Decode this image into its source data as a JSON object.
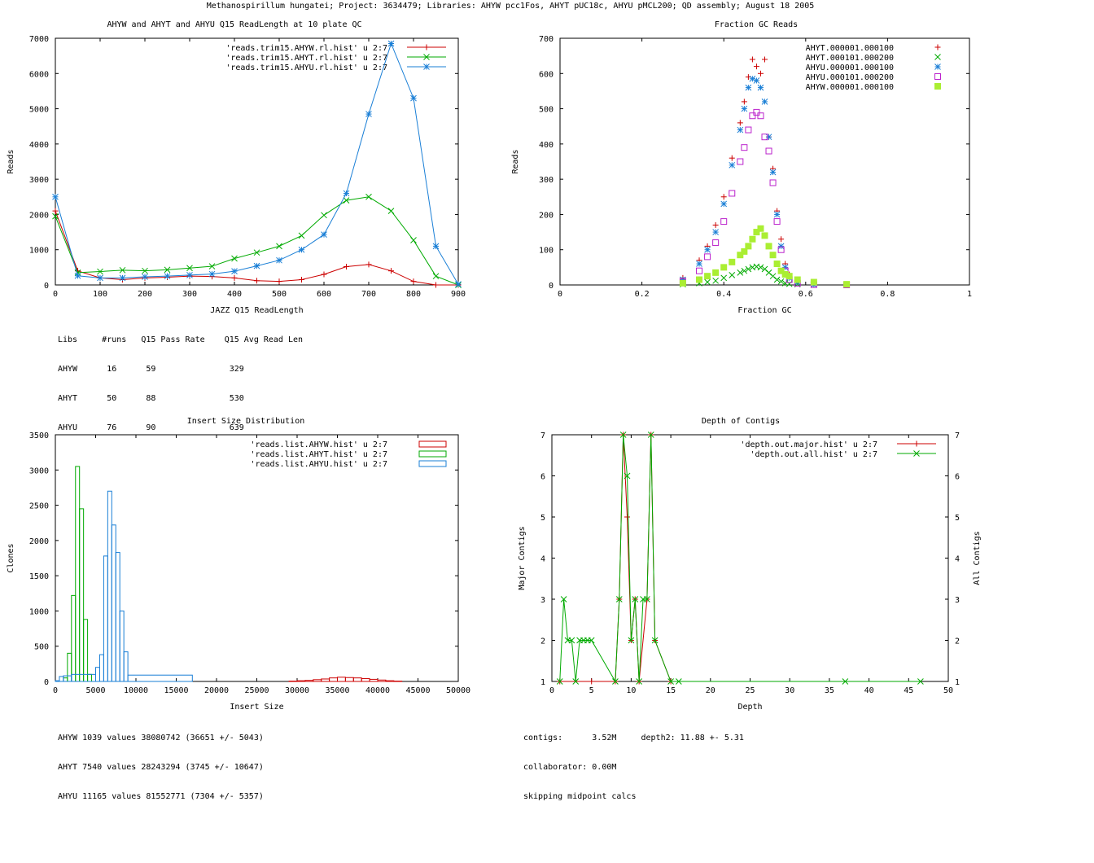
{
  "page_title": "Methanospirillum hungatei; Project: 3634479; Libraries: AHYW pcc1Fos, AHYT pUC18c, AHYU pMCL200; QD assembly; August 18 2005",
  "stats": {
    "readlength": [
      "Libs     #runs   Q15 Pass Rate    Q15 Avg Read Len",
      "AHYW      16      59               329",
      "AHYT      50      88               530",
      "AHYU      76      90               639"
    ],
    "insert": [
      "AHYW 1039 values 38080742 (36651 +/- 5043)",
      "AHYT 7540 values 28243294 (3745 +/- 10647)",
      "AHYU 11165 values 81552771 (7304 +/- 5357)"
    ],
    "depth": [
      "contigs:      3.52M     depth2: 11.88 +- 5.31",
      "collaborator: 0.00M",
      "skipping midpoint calcs"
    ]
  },
  "chart_data": [
    {
      "type": "line",
      "title": "AHYW and AHYT and AHYU Q15 ReadLength at 10 plate QC",
      "xlabel": "JAZZ Q15 ReadLength",
      "ylabel": "Reads",
      "xlim": [
        0,
        900
      ],
      "ylim": [
        0,
        7000
      ],
      "xticks": [
        0,
        100,
        200,
        300,
        400,
        500,
        600,
        700,
        800,
        900
      ],
      "yticks": [
        0,
        1000,
        2000,
        3000,
        4000,
        5000,
        6000,
        7000
      ],
      "legend": "top-right",
      "x": [
        0,
        50,
        100,
        150,
        200,
        250,
        300,
        350,
        400,
        450,
        500,
        550,
        600,
        650,
        700,
        750,
        800,
        850,
        900
      ],
      "series": [
        {
          "name": "'reads.trim15.AHYW.rl.hist' u 2:7",
          "color": "#cc0000",
          "marker": "plus",
          "values": [
            2100,
            400,
            200,
            150,
            200,
            220,
            250,
            240,
            200,
            120,
            100,
            150,
            300,
            520,
            580,
            400,
            100,
            0,
            0
          ]
        },
        {
          "name": "'reads.trim15.AHYT.rl.hist' u 2:7",
          "color": "#00aa00",
          "marker": "x",
          "values": [
            1950,
            350,
            380,
            420,
            400,
            430,
            480,
            530,
            750,
            920,
            1100,
            1400,
            1980,
            2400,
            2500,
            2100,
            1270,
            250,
            0
          ]
        },
        {
          "name": "'reads.trim15.AHYU.rl.hist' u 2:7",
          "color": "#1a7fd6",
          "marker": "star",
          "values": [
            2500,
            260,
            200,
            200,
            230,
            250,
            280,
            310,
            390,
            540,
            700,
            1000,
            1430,
            2600,
            4850,
            6850,
            5300,
            1100,
            20
          ]
        }
      ]
    },
    {
      "type": "scatter",
      "title": "Fraction GC Reads",
      "xlabel": "Fraction GC",
      "ylabel": "Reads",
      "xlim": [
        0,
        1
      ],
      "ylim": [
        0,
        700
      ],
      "xticks": [
        0,
        0.2,
        0.4,
        0.6,
        0.8,
        1
      ],
      "yticks": [
        0,
        100,
        200,
        300,
        400,
        500,
        600,
        700
      ],
      "legend": "top-right",
      "x": [
        0.3,
        0.34,
        0.36,
        0.38,
        0.4,
        0.42,
        0.44,
        0.45,
        0.46,
        0.47,
        0.48,
        0.49,
        0.5,
        0.51,
        0.52,
        0.53,
        0.54,
        0.55,
        0.56,
        0.58,
        0.62,
        0.7
      ],
      "series": [
        {
          "name": "AHYT.000001.000100",
          "color": "#cc0000",
          "marker": "plus",
          "values": [
            20,
            70,
            110,
            170,
            250,
            360,
            460,
            520,
            590,
            640,
            620,
            600,
            640,
            420,
            330,
            210,
            130,
            60,
            30,
            10,
            2,
            0
          ]
        },
        {
          "name": "AHYT.000101.000200",
          "color": "#00aa00",
          "marker": "x",
          "values": [
            2,
            5,
            8,
            12,
            20,
            28,
            35,
            40,
            45,
            50,
            52,
            50,
            45,
            35,
            25,
            15,
            10,
            5,
            3,
            2,
            1,
            0
          ]
        },
        {
          "name": "AHYU.000001.000100",
          "color": "#1a7fd6",
          "marker": "star",
          "values": [
            15,
            60,
            100,
            150,
            230,
            340,
            440,
            500,
            560,
            585,
            580,
            560,
            520,
            420,
            320,
            200,
            110,
            50,
            20,
            8,
            1,
            0
          ]
        },
        {
          "name": "AHYU.000101.000200",
          "color": "#bb22cc",
          "marker": "box",
          "values": [
            10,
            40,
            80,
            120,
            180,
            260,
            350,
            390,
            440,
            480,
            490,
            480,
            420,
            380,
            290,
            180,
            100,
            40,
            15,
            5,
            1,
            0
          ]
        },
        {
          "name": "AHYW.000001.000100",
          "color": "#aaee33",
          "marker": "filledbox",
          "values": [
            5,
            15,
            25,
            35,
            50,
            65,
            85,
            95,
            110,
            130,
            150,
            160,
            140,
            110,
            85,
            60,
            40,
            30,
            25,
            15,
            8,
            2
          ]
        }
      ]
    },
    {
      "type": "bar",
      "title": "Insert Size Distribution",
      "xlabel": "Insert Size",
      "ylabel": "Clones",
      "xlim": [
        0,
        50000
      ],
      "ylim": [
        0,
        3500
      ],
      "xticks": [
        0,
        5000,
        10000,
        15000,
        20000,
        25000,
        30000,
        35000,
        40000,
        45000,
        50000
      ],
      "yticks": [
        0,
        500,
        1000,
        1500,
        2000,
        2500,
        3000,
        3500
      ],
      "legend": "top-right",
      "series": [
        {
          "name": "'reads.list.AHYW.hist' u 2:7",
          "color": "#cc0000",
          "bins": [
            [
              29000,
              30000,
              5
            ],
            [
              30000,
              31000,
              10
            ],
            [
              31000,
              32000,
              15
            ],
            [
              32000,
              33000,
              25
            ],
            [
              33000,
              34000,
              35
            ],
            [
              34000,
              35000,
              50
            ],
            [
              35000,
              36000,
              60
            ],
            [
              36000,
              37000,
              55
            ],
            [
              37000,
              38000,
              50
            ],
            [
              38000,
              39000,
              40
            ],
            [
              39000,
              40000,
              30
            ],
            [
              40000,
              41000,
              20
            ],
            [
              41000,
              42000,
              10
            ],
            [
              42000,
              43000,
              5
            ]
          ]
        },
        {
          "name": "'reads.list.AHYT.hist' u 2:7",
          "color": "#00aa00",
          "bins": [
            [
              1000,
              1500,
              50
            ],
            [
              1500,
              2000,
              400
            ],
            [
              2000,
              2500,
              1220
            ],
            [
              2500,
              3000,
              3050
            ],
            [
              3000,
              3500,
              2450
            ],
            [
              3500,
              4000,
              880
            ],
            [
              4000,
              4500,
              100
            ]
          ]
        },
        {
          "name": "'reads.list.AHYU.hist' u 2:7",
          "color": "#1a7fd6",
          "bins": [
            [
              0,
              500,
              10
            ],
            [
              500,
              1000,
              70
            ],
            [
              1000,
              2000,
              80
            ],
            [
              2000,
              5000,
              100
            ],
            [
              5000,
              5500,
              200
            ],
            [
              5500,
              6000,
              380
            ],
            [
              6000,
              6500,
              1780
            ],
            [
              6500,
              7000,
              2700
            ],
            [
              7000,
              7500,
              2220
            ],
            [
              7500,
              8000,
              1830
            ],
            [
              8000,
              8500,
              1000
            ],
            [
              8500,
              9000,
              420
            ],
            [
              9000,
              17000,
              90
            ]
          ]
        }
      ]
    },
    {
      "type": "line",
      "title": "Depth of Contigs",
      "xlabel": "Depth",
      "ylabel": "Major Contigs",
      "y2label": "All Contigs",
      "xlim": [
        0,
        50
      ],
      "ylim": [
        1,
        7
      ],
      "y2lim": [
        1,
        7
      ],
      "xticks": [
        0,
        5,
        10,
        15,
        20,
        25,
        30,
        35,
        40,
        45,
        50
      ],
      "yticks": [
        1,
        2,
        3,
        4,
        5,
        6,
        7
      ],
      "legend": "top-right",
      "series": [
        {
          "name": "'depth.out.major.hist' u 2:7",
          "color": "#cc0000",
          "marker": "plus",
          "x": [
            1,
            5,
            8,
            8.5,
            9,
            9.5,
            10,
            10.5,
            11,
            12,
            12.5,
            13,
            15
          ],
          "values": [
            1,
            1,
            1,
            3,
            7,
            5,
            2,
            3,
            1,
            3,
            7,
            2,
            1
          ]
        },
        {
          "name": "'depth.out.all.hist' u 2:7",
          "color": "#00aa00",
          "marker": "x",
          "x": [
            1,
            1.5,
            2,
            2.5,
            3,
            3.5,
            4,
            4.5,
            5,
            8,
            8.5,
            9,
            9.5,
            10,
            10.5,
            11,
            11.5,
            12,
            12.5,
            13,
            15,
            16,
            37,
            46.5
          ],
          "values": [
            1,
            3,
            2,
            2,
            1,
            2,
            2,
            2,
            2,
            1,
            3,
            7,
            6,
            2,
            3,
            1,
            3,
            3,
            7,
            2,
            1,
            1,
            1,
            1
          ]
        }
      ]
    }
  ]
}
